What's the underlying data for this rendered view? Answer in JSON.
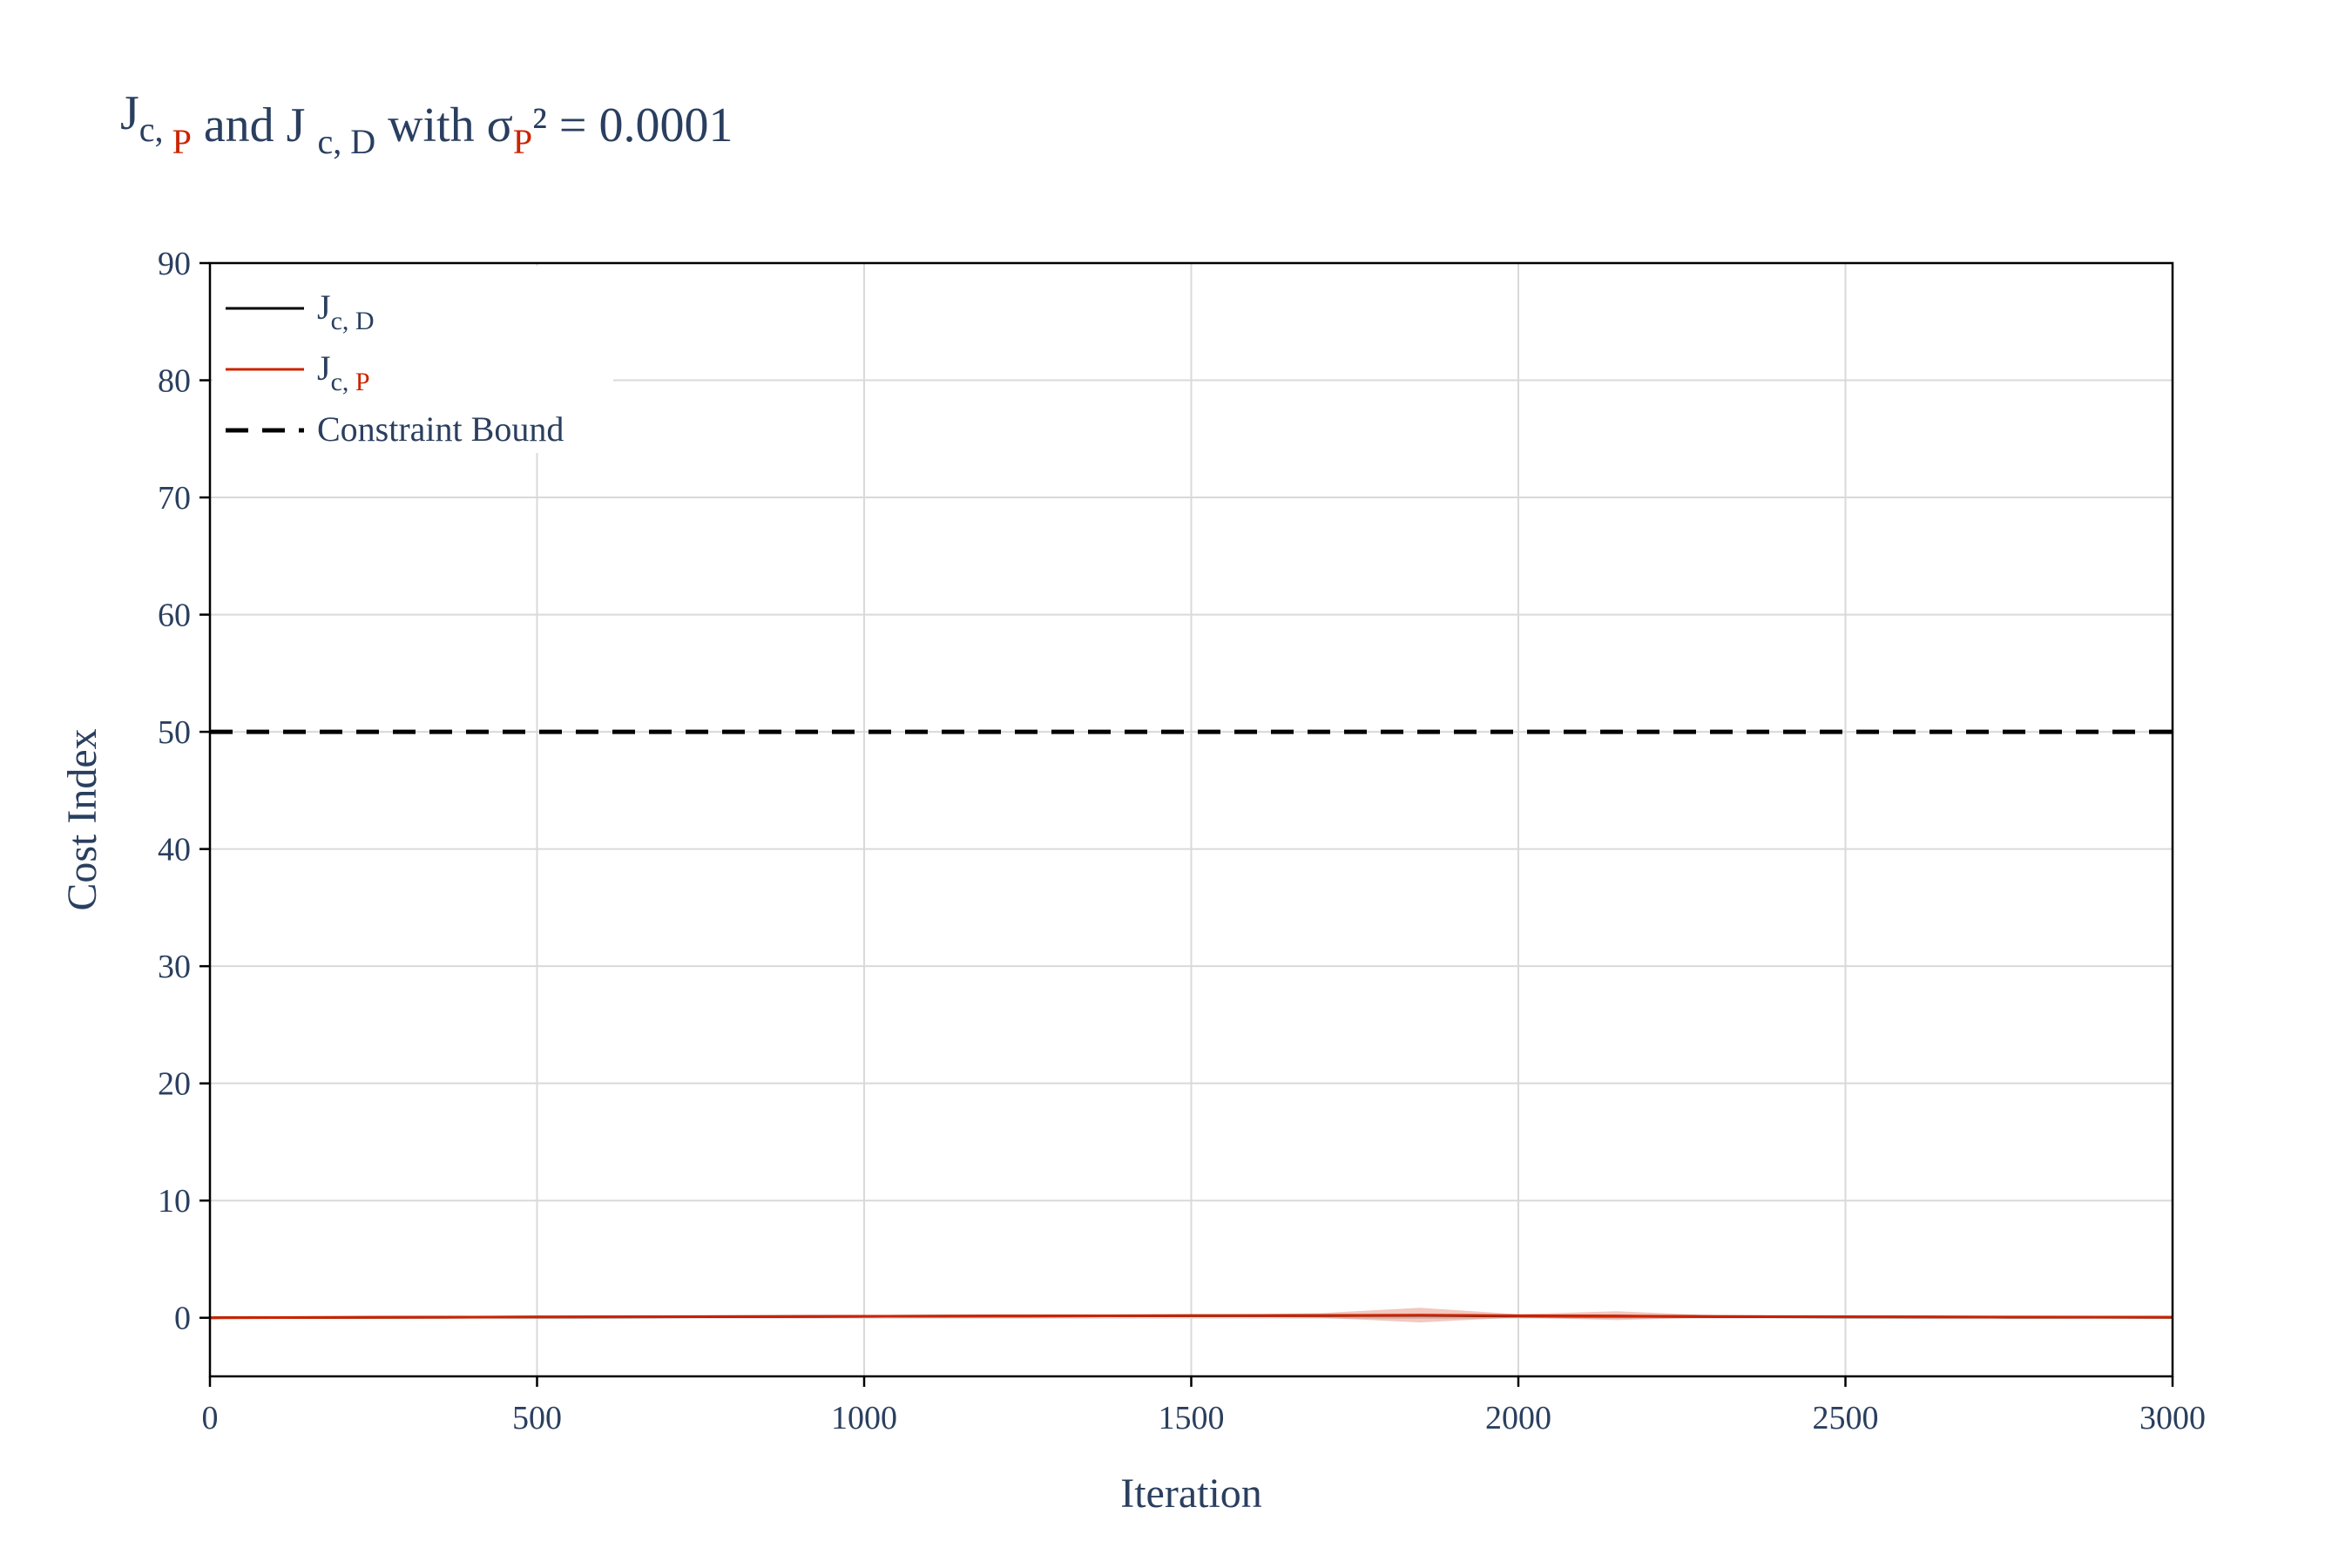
{
  "chart_data": {
    "type": "line",
    "title": {
      "parts": [
        {
          "text": "J",
          "kind": "base"
        },
        {
          "text": "c, ",
          "kind": "sub"
        },
        {
          "text": "P",
          "kind": "sub-accent"
        },
        {
          "text": " and J ",
          "kind": "base"
        },
        {
          "text": "c, D",
          "kind": "sub"
        },
        {
          "text": "  with σ",
          "kind": "base"
        },
        {
          "text": "P",
          "kind": "sub-accent"
        },
        {
          "text": "² = 0.0001",
          "kind": "base"
        }
      ]
    },
    "xlabel": "Iteration",
    "ylabel": "Cost Index",
    "xlim": [
      0,
      3000
    ],
    "ylim": [
      -5,
      90
    ],
    "xticks": [
      0,
      500,
      1000,
      1500,
      2000,
      2500,
      3000
    ],
    "yticks": [
      0,
      10,
      20,
      30,
      40,
      50,
      60,
      70,
      80,
      90
    ],
    "grid": true,
    "legend_position": "top-left",
    "legend": [
      {
        "key": "jcd",
        "base": "J",
        "sub": "c, D",
        "sub_accent": "",
        "color": "#000000",
        "dash": "solid"
      },
      {
        "key": "jcp",
        "base": "J",
        "sub": "c, ",
        "sub_accent": "P",
        "color": "#cc2200",
        "dash": "solid"
      },
      {
        "key": "bound",
        "base": "Constraint Bound",
        "sub": "",
        "sub_accent": "",
        "color": "#000000",
        "dash": "dash"
      }
    ],
    "constraint_bound": 50,
    "series": [
      {
        "key": "jcd",
        "color": "#000000",
        "x": [
          0,
          250,
          500,
          750,
          1000,
          1250,
          1500,
          1700,
          1850,
          2000,
          2150,
          2300,
          2500,
          2750,
          3000
        ],
        "y": [
          0.0,
          0.03,
          0.06,
          0.09,
          0.12,
          0.15,
          0.17,
          0.18,
          0.2,
          0.15,
          0.14,
          0.1,
          0.08,
          0.05,
          0.04
        ]
      },
      {
        "key": "jcp",
        "color": "#cc2200",
        "x": [
          0,
          250,
          500,
          750,
          1000,
          1250,
          1500,
          1700,
          1850,
          2000,
          2150,
          2300,
          2500,
          2750,
          3000
        ],
        "y": [
          0.0,
          0.03,
          0.07,
          0.1,
          0.13,
          0.16,
          0.18,
          0.19,
          0.22,
          0.17,
          0.15,
          0.11,
          0.09,
          0.06,
          0.05
        ],
        "band_upper": [
          0.0,
          0.04,
          0.08,
          0.12,
          0.15,
          0.19,
          0.22,
          0.4,
          0.85,
          0.3,
          0.55,
          0.2,
          0.18,
          0.1,
          0.07
        ],
        "band_lower": [
          0.0,
          0.02,
          0.05,
          0.08,
          0.11,
          0.13,
          0.14,
          0.0,
          -0.4,
          0.04,
          -0.2,
          0.04,
          0.02,
          0.02,
          0.03
        ],
        "band_color": "#cc2200"
      }
    ]
  }
}
